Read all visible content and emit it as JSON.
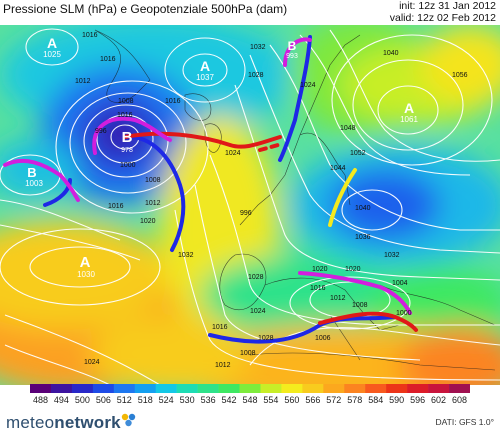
{
  "header": {
    "title": "Pressione SLM (hPa) e Geopotenziale 500hPa (dam)",
    "init": "init: 12z 31 Jan 2012",
    "valid": "valid: 12z 02 Feb 2012"
  },
  "centers": [
    {
      "letter": "A",
      "value": "1025"
    },
    {
      "letter": "A",
      "value": "1037"
    },
    {
      "letter": "B",
      "value": "993"
    },
    {
      "letter": "B",
      "value": "978"
    },
    {
      "letter": "B",
      "value": "1003"
    },
    {
      "letter": "A",
      "value": "1061"
    },
    {
      "letter": "A",
      "value": "1030"
    }
  ],
  "isobar_labels": [
    "1016",
    "1012",
    "1016",
    "1032",
    "1028",
    "1016",
    "1008",
    "1000",
    "996",
    "1008",
    "1012",
    "1020",
    "1024",
    "1016",
    "1024",
    "1040",
    "1056",
    "1048",
    "1052",
    "1044",
    "1040",
    "1036",
    "1032",
    "1028",
    "1024",
    "1020",
    "1016",
    "1012",
    "1008",
    "1004",
    "1000",
    "1020",
    "1016",
    "1012",
    "1008",
    "1006",
    "1028",
    "1032",
    "1024",
    "996",
    "1016"
  ],
  "legend": {
    "values": [
      "488",
      "494",
      "500",
      "506",
      "512",
      "518",
      "524",
      "530",
      "536",
      "542",
      "548",
      "554",
      "560",
      "566",
      "572",
      "578",
      "584",
      "590",
      "596",
      "602",
      "608"
    ],
    "colors": [
      "#5a0078",
      "#3c14a0",
      "#2828c8",
      "#1e4be6",
      "#1e78f0",
      "#14a0f0",
      "#14c8e6",
      "#1edcb4",
      "#2ee28a",
      "#3ee862",
      "#7eec3c",
      "#c8ee28",
      "#f4ec1e",
      "#f8cc1e",
      "#fca81e",
      "#fc8420",
      "#f85a1e",
      "#ec3418",
      "#dc1c28",
      "#c8143c",
      "#a01050"
    ]
  },
  "footer": {
    "logo_left": "meteo",
    "logo_right": "network",
    "dati": "DATI: GFS 1.0°"
  }
}
